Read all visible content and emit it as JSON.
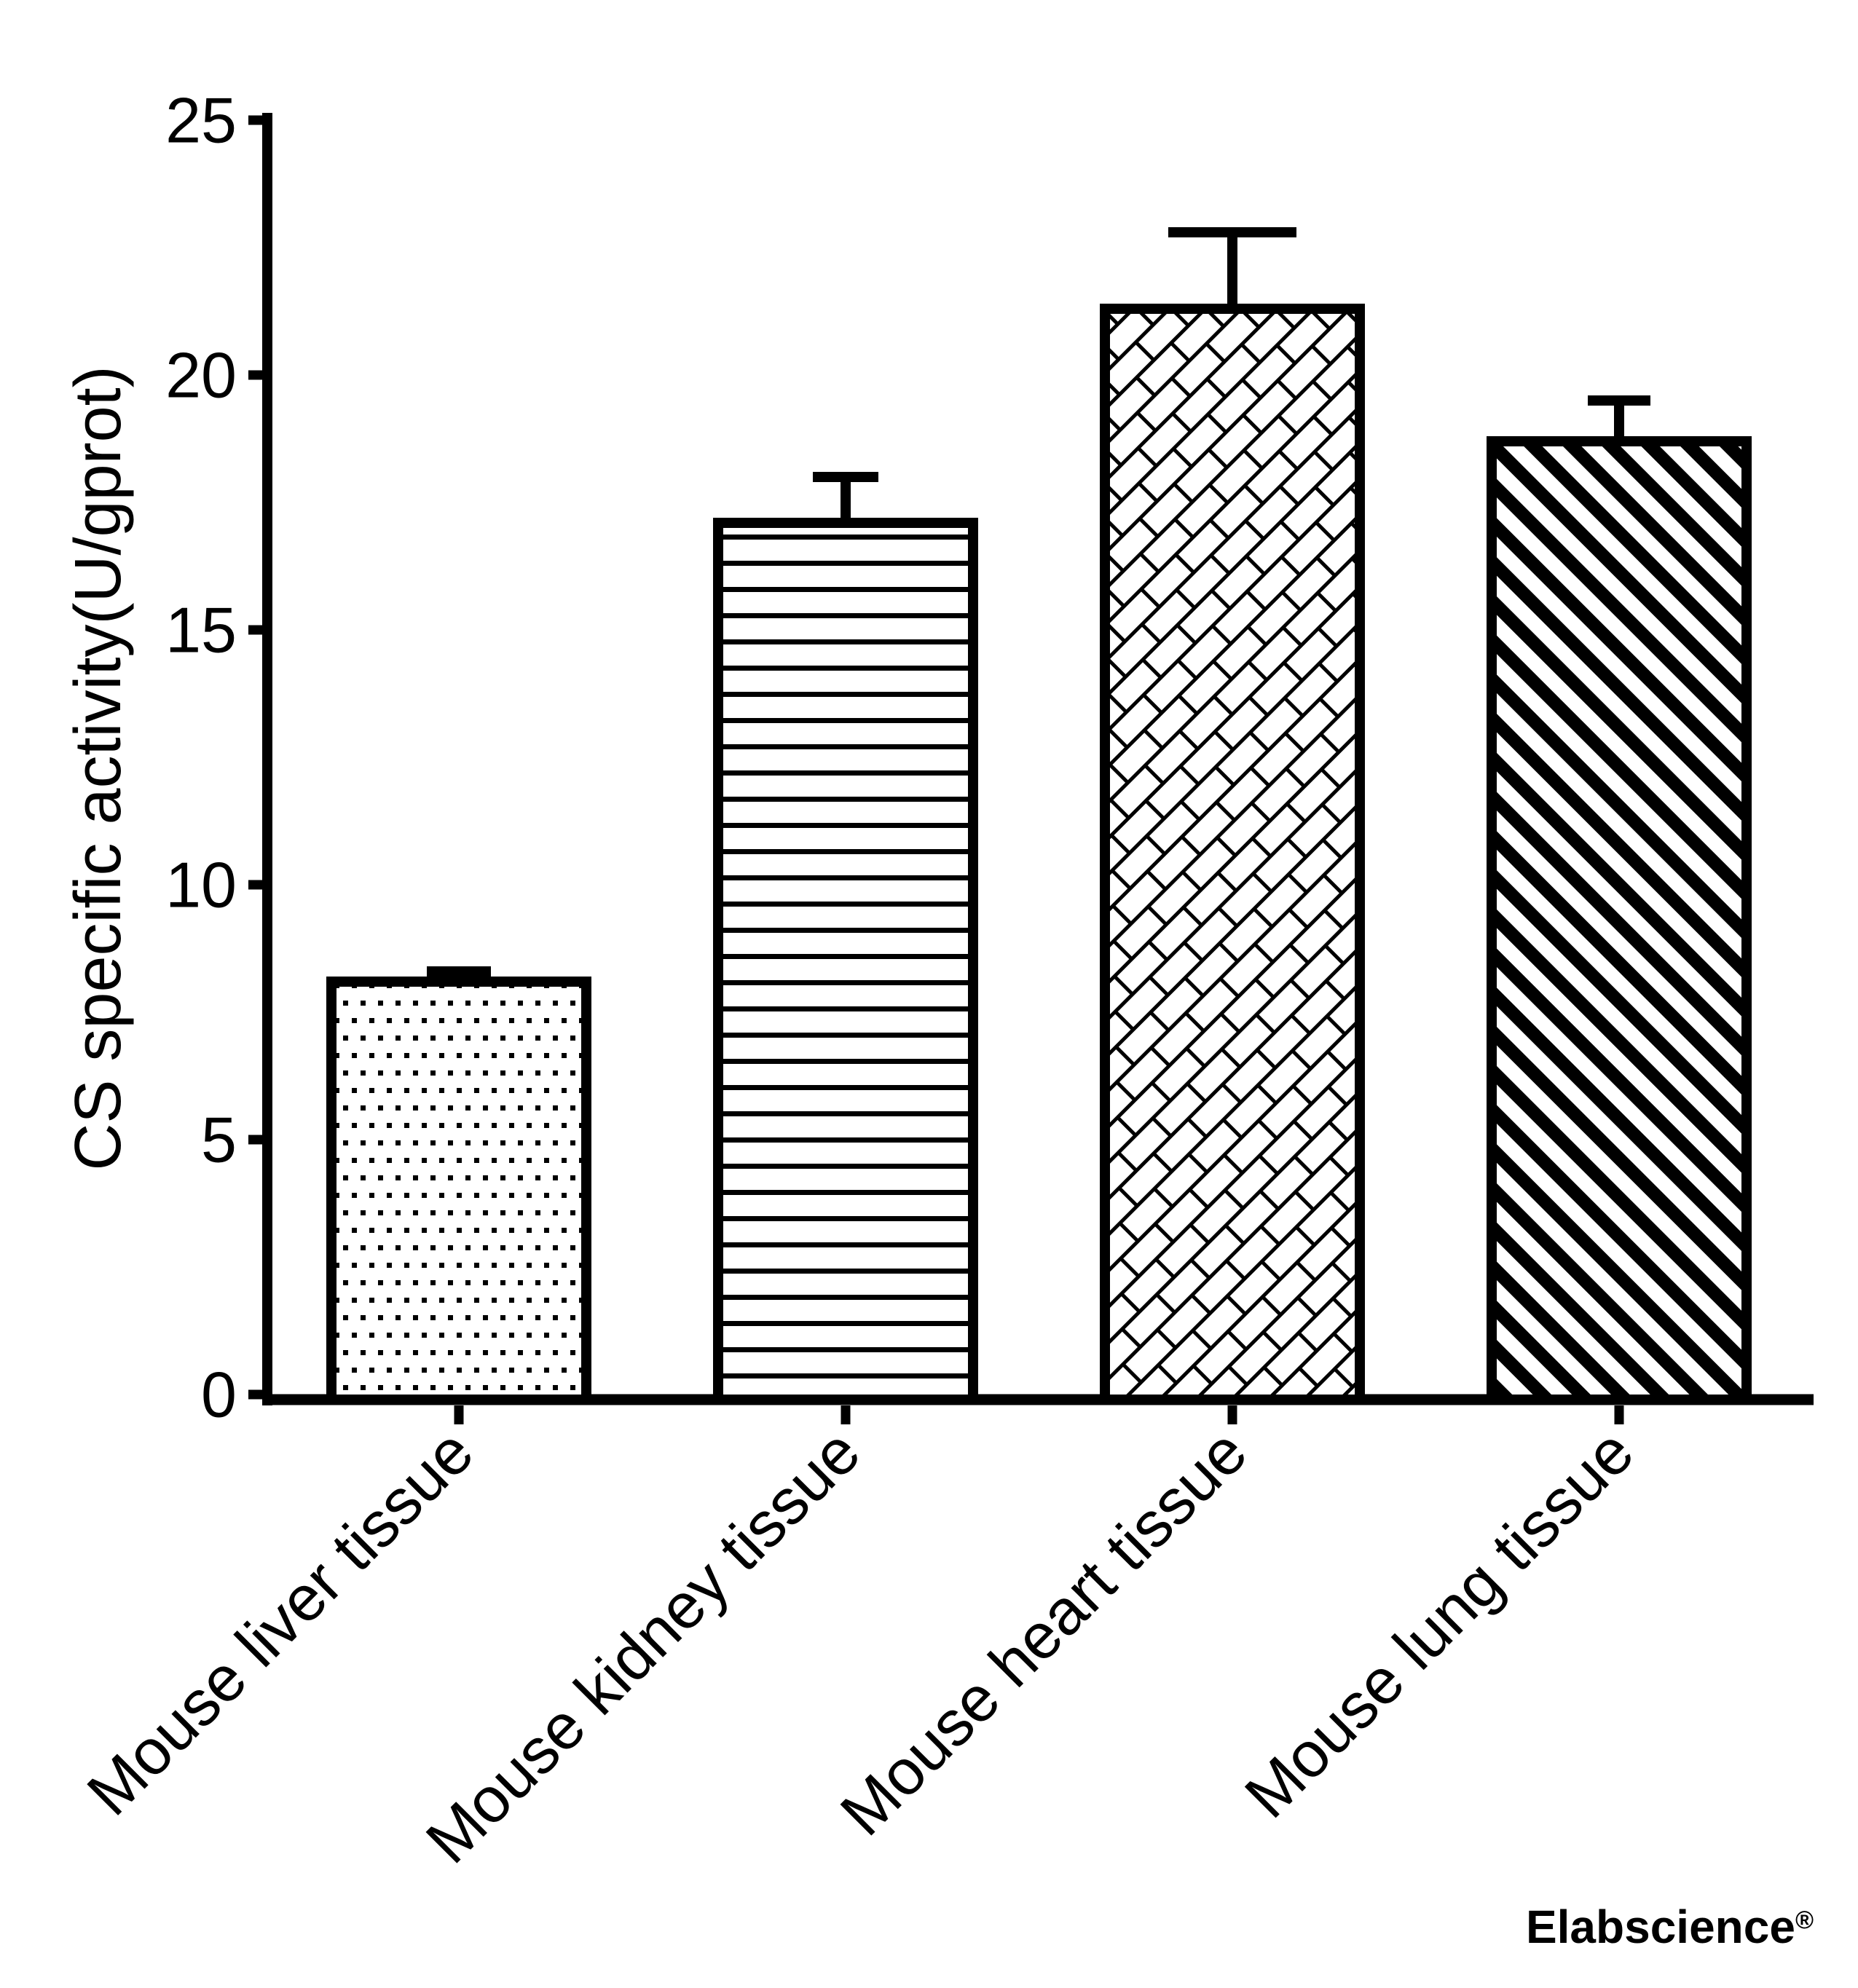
{
  "page": {
    "background": "#ffffff",
    "ink_color": "#000000"
  },
  "y_axis": {
    "title": "CS specific activity(U/gprot)",
    "ticks": [
      0,
      5,
      10,
      15,
      20,
      25
    ],
    "range": [
      0,
      25
    ]
  },
  "watermark": {
    "text": "Elabscience",
    "registered": "®",
    "color": "#f2f2f2"
  },
  "chart_data": {
    "type": "bar",
    "title": "",
    "xlabel": "",
    "ylabel": "CS specific activity(U/gprot)",
    "categories": [
      "Mouse liver tissue",
      "Mouse kidney tissue",
      "Mouse heart tissue",
      "Mouse lung tissue"
    ],
    "values": [
      8.1,
      17.1,
      21.3,
      18.7
    ],
    "errors_plus": [
      0.2,
      0.9,
      1.5,
      0.8
    ],
    "ylim": [
      0,
      25
    ],
    "grid": false,
    "legend_position": "none",
    "bar_fill_patterns": [
      "dots",
      "horizontal-lines",
      "diagonal-bricks",
      "diagonal-stripes"
    ],
    "bar_outline_color": "#000000",
    "bar_fill_background": "#ffffff"
  }
}
